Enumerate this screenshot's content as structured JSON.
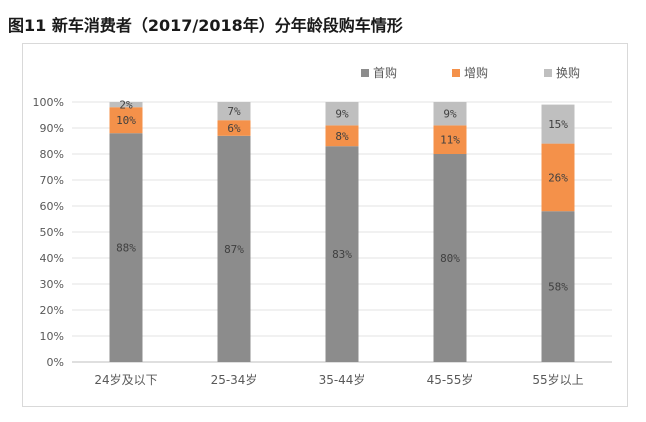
{
  "page": {
    "title": "图11  新车消费者（2017/2018年）分年龄段购车情形"
  },
  "chart_data": {
    "type": "bar",
    "stacked": true,
    "percent": true,
    "categories": [
      "24岁及以下",
      "25-34岁",
      "35-44岁",
      "45-55岁",
      "55岁以上"
    ],
    "series": [
      {
        "name": "首购",
        "values": [
          88,
          87,
          83,
          80,
          58
        ],
        "color": "#8c8c8c",
        "label_color": "#404040"
      },
      {
        "name": "增购",
        "values": [
          10,
          6,
          8,
          11,
          26
        ],
        "color": "#f4914a",
        "label_color": "#404040"
      },
      {
        "name": "换购",
        "values": [
          2,
          7,
          9,
          9,
          15
        ],
        "color": "#bfbfbf",
        "label_color": "#404040"
      }
    ],
    "data_labels": [
      [
        "88%",
        "87%",
        "83%",
        "80%",
        "58%"
      ],
      [
        "10%",
        "6%",
        "8%",
        "11%",
        "26%"
      ],
      [
        "2%",
        "7%",
        "9%",
        "9%",
        "15%"
      ]
    ],
    "yticks": [
      "0%",
      "10%",
      "20%",
      "30%",
      "40%",
      "50%",
      "60%",
      "70%",
      "80%",
      "90%",
      "100%"
    ],
    "ylim": [
      0,
      100
    ],
    "grid": true,
    "legend_position": "top-right"
  }
}
